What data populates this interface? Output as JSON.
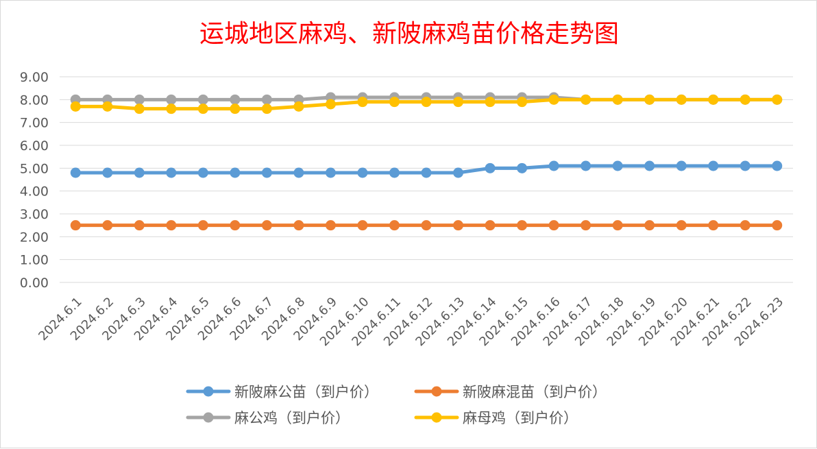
{
  "chart_data": {
    "type": "line",
    "title": "运城地区麻鸡、新陂麻鸡苗价格走势图",
    "xlabel": "",
    "ylabel": "",
    "ylim": [
      0,
      9
    ],
    "ytick_step": 1,
    "ytick_labels": [
      "0.00",
      "1.00",
      "2.00",
      "3.00",
      "4.00",
      "5.00",
      "6.00",
      "7.00",
      "8.00",
      "9.00"
    ],
    "grid": true,
    "legend_position": "bottom",
    "categories": [
      "2024.6.1",
      "2024.6.2",
      "2024.6.3",
      "2024.6.4",
      "2024.6.5",
      "2024.6.6",
      "2024.6.7",
      "2024.6.8",
      "2024.6.9",
      "2024.6.10",
      "2024.6.11",
      "2024.6.12",
      "2024.6.13",
      "2024.6.14",
      "2024.6.15",
      "2024.6.16",
      "2024.6.17",
      "2024.6.18",
      "2024.6.19",
      "2024.6.20",
      "2024.6.21",
      "2024.6.22",
      "2024.6.23"
    ],
    "series": [
      {
        "name": "新陂麻公苗（到户价）",
        "color": "#5b9bd5",
        "values": [
          4.8,
          4.8,
          4.8,
          4.8,
          4.8,
          4.8,
          4.8,
          4.8,
          4.8,
          4.8,
          4.8,
          4.8,
          4.8,
          5.0,
          5.0,
          5.1,
          5.1,
          5.1,
          5.1,
          5.1,
          5.1,
          5.1,
          5.1
        ]
      },
      {
        "name": "新陂麻混苗（到户价）",
        "color": "#ed7d31",
        "values": [
          2.5,
          2.5,
          2.5,
          2.5,
          2.5,
          2.5,
          2.5,
          2.5,
          2.5,
          2.5,
          2.5,
          2.5,
          2.5,
          2.5,
          2.5,
          2.5,
          2.5,
          2.5,
          2.5,
          2.5,
          2.5,
          2.5,
          2.5
        ]
      },
      {
        "name": "麻公鸡（到户价）",
        "color": "#a5a5a5",
        "values": [
          8.0,
          8.0,
          8.0,
          8.0,
          8.0,
          8.0,
          8.0,
          8.0,
          8.1,
          8.1,
          8.1,
          8.1,
          8.1,
          8.1,
          8.1,
          8.1,
          8.0,
          8.0,
          8.0,
          8.0,
          8.0,
          8.0,
          8.0
        ]
      },
      {
        "name": "麻母鸡（到户价）",
        "color": "#ffc000",
        "values": [
          7.7,
          7.7,
          7.6,
          7.6,
          7.6,
          7.6,
          7.6,
          7.7,
          7.8,
          7.9,
          7.9,
          7.9,
          7.9,
          7.9,
          7.9,
          8.0,
          8.0,
          8.0,
          8.0,
          8.0,
          8.0,
          8.0,
          8.0
        ]
      }
    ]
  }
}
